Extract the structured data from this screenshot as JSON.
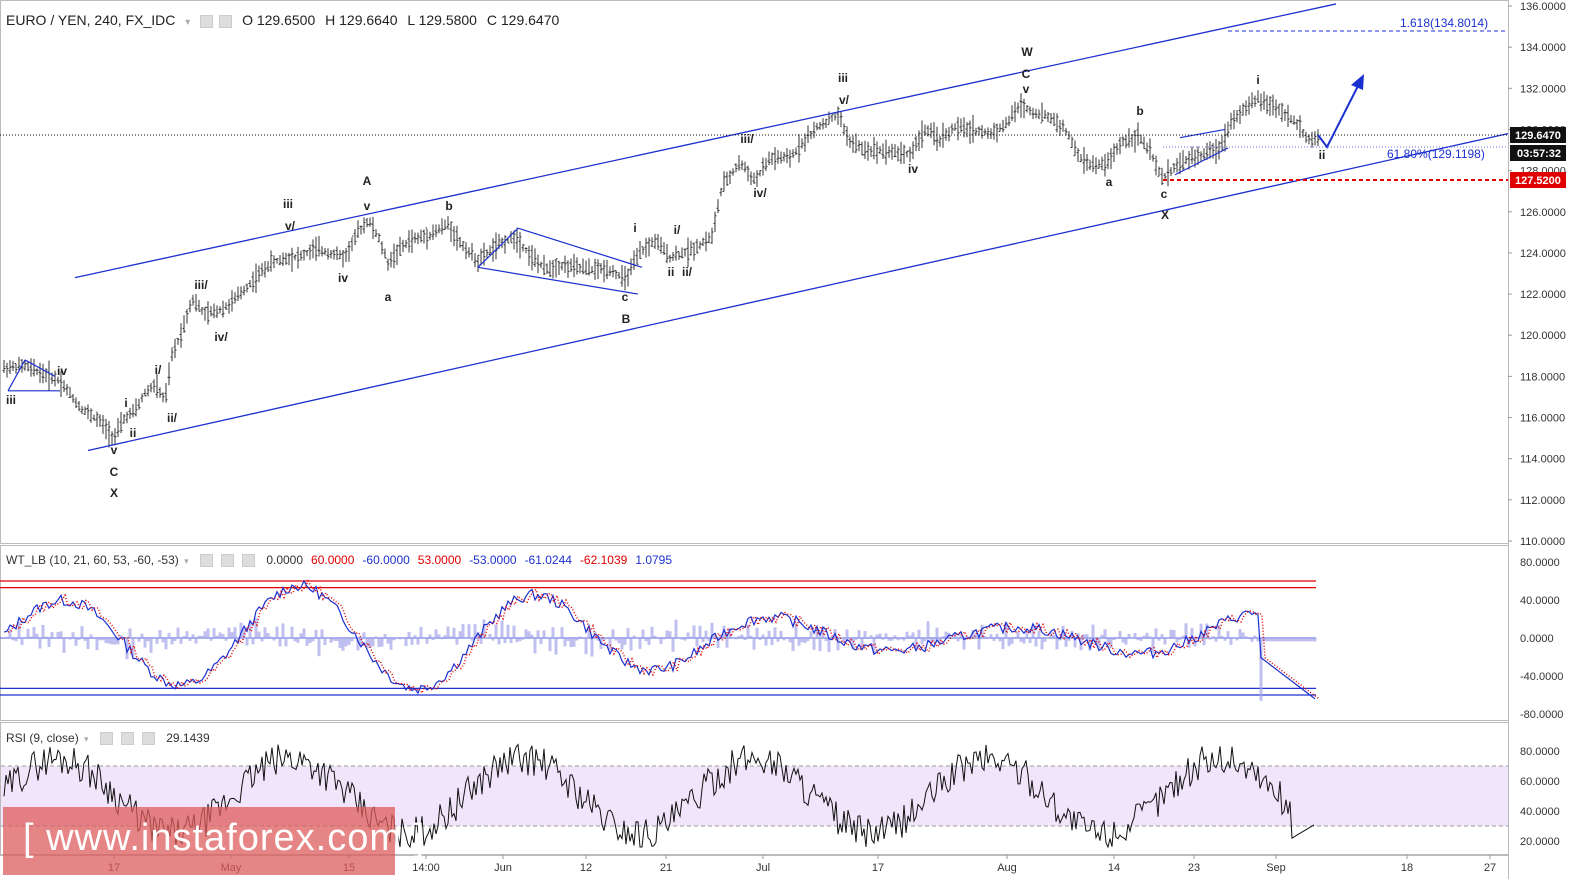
{
  "header": {
    "symbol": "EURO / YEN, 240, FX_IDC",
    "open": "O 129.6500",
    "high": "H 129.6640",
    "low": "L 129.5800",
    "close": "C 129.6470"
  },
  "indicator_wt": {
    "label": "WT_LB (10, 21, 60, 53, -60, -53)",
    "values": [
      "0.0000",
      "60.0000",
      "-60.0000",
      "53.0000",
      "-53.0000",
      "-61.0244",
      "-62.1039",
      "1.0795"
    ],
    "colors": [
      "#333333",
      "#e00000",
      "#1c30d0",
      "#e00000",
      "#1c30d0",
      "#1c30d0",
      "#e00000",
      "#1c30d0"
    ]
  },
  "indicator_rsi": {
    "label": "RSI (9, close)",
    "value": "29.1439"
  },
  "price_labels": {
    "current": "129.6470",
    "timer": "03:57:32",
    "support": "127.5200"
  },
  "fib_labels": {
    "ext": "1.618(134.8014)",
    "retr": "61.80%(129.1198)"
  },
  "watermark": "[ www.instaforex.com ]",
  "colors": {
    "price_bars": "#333333",
    "channel": "#1c30d0",
    "support_line": "#e00000",
    "fib": "#1c30d0",
    "wt_fast": "#1c30d0",
    "wt_slow": "#e00000",
    "wt_hist": "#a4a4ea",
    "rsi_band": "#f1e5fb",
    "rsi_line": "#111111",
    "axis_current_bg": "#111111",
    "axis_support_bg": "#e00000"
  },
  "chart_data": [
    {
      "type": "ohlc",
      "title": "EURO / YEN, 240, FX_IDC",
      "ylim": [
        110,
        136
      ],
      "y_ticks": [
        "110.0000",
        "112.0000",
        "114.0000",
        "116.0000",
        "118.0000",
        "120.0000",
        "122.0000",
        "124.0000",
        "126.0000",
        "128.0000",
        "130.0000",
        "132.0000",
        "134.0000",
        "136.0000"
      ],
      "x_ticks": [
        "17",
        "May",
        "15",
        "14:00",
        "Jun",
        "12",
        "21",
        "Jul",
        "17",
        "Aug",
        "14",
        "23",
        "Sep",
        "18",
        "27"
      ],
      "price_path": [
        [
          0,
          118.4
        ],
        [
          25,
          118.5
        ],
        [
          40,
          118.2
        ],
        [
          60,
          117.8
        ],
        [
          80,
          116.5
        ],
        [
          100,
          115.8
        ],
        [
          114,
          115.0
        ],
        [
          125,
          116.0
        ],
        [
          135,
          116.3
        ],
        [
          145,
          117.2
        ],
        [
          155,
          117.6
        ],
        [
          165,
          116.8
        ],
        [
          172,
          119.0
        ],
        [
          182,
          120.2
        ],
        [
          192,
          121.8
        ],
        [
          205,
          121.0
        ],
        [
          218,
          121.2
        ],
        [
          230,
          121.5
        ],
        [
          250,
          122.5
        ],
        [
          270,
          123.5
        ],
        [
          290,
          123.8
        ],
        [
          300,
          123.8
        ],
        [
          315,
          124.2
        ],
        [
          330,
          124.0
        ],
        [
          345,
          123.8
        ],
        [
          358,
          125.0
        ],
        [
          368,
          125.6
        ],
        [
          378,
          124.8
        ],
        [
          388,
          123.5
        ],
        [
          398,
          124.1
        ],
        [
          410,
          124.6
        ],
        [
          430,
          124.9
        ],
        [
          448,
          125.4
        ],
        [
          460,
          124.5
        ],
        [
          478,
          123.6
        ],
        [
          495,
          124.3
        ],
        [
          515,
          124.8
        ],
        [
          530,
          123.9
        ],
        [
          545,
          123.2
        ],
        [
          560,
          123.4
        ],
        [
          575,
          123.3
        ],
        [
          590,
          123.2
        ],
        [
          610,
          123.2
        ],
        [
          625,
          122.7
        ],
        [
          640,
          124.0
        ],
        [
          655,
          124.6
        ],
        [
          670,
          123.8
        ],
        [
          690,
          124.1
        ],
        [
          712,
          124.8
        ],
        [
          722,
          127.2
        ],
        [
          740,
          128.4
        ],
        [
          755,
          127.5
        ],
        [
          770,
          128.6
        ],
        [
          790,
          128.6
        ],
        [
          805,
          129.5
        ],
        [
          820,
          130.2
        ],
        [
          838,
          130.7
        ],
        [
          850,
          129.4
        ],
        [
          865,
          129.0
        ],
        [
          880,
          129.0
        ],
        [
          895,
          128.9
        ],
        [
          910,
          128.8
        ],
        [
          925,
          130.0
        ],
        [
          940,
          129.5
        ],
        [
          955,
          130.1
        ],
        [
          970,
          130.0
        ],
        [
          990,
          129.8
        ],
        [
          1005,
          130.2
        ],
        [
          1020,
          131.2
        ],
        [
          1035,
          130.8
        ],
        [
          1050,
          130.6
        ],
        [
          1065,
          130.0
        ],
        [
          1080,
          128.6
        ],
        [
          1095,
          128.2
        ],
        [
          1108,
          128.4
        ],
        [
          1122,
          129.4
        ],
        [
          1138,
          129.7
        ],
        [
          1150,
          128.9
        ],
        [
          1162,
          127.6
        ],
        [
          1175,
          128.2
        ],
        [
          1190,
          128.6
        ],
        [
          1205,
          128.8
        ],
        [
          1220,
          129.1
        ],
        [
          1232,
          130.5
        ],
        [
          1245,
          131.0
        ],
        [
          1258,
          131.5
        ],
        [
          1270,
          131.2
        ],
        [
          1285,
          130.8
        ],
        [
          1298,
          130.2
        ],
        [
          1310,
          129.4
        ],
        [
          1318,
          129.6
        ]
      ],
      "annotations": {
        "channel_upper": [
          [
            75,
            122.8
          ],
          [
            1336,
            136.1
          ]
        ],
        "channel_lower": [
          [
            88,
            114.4
          ],
          [
            1508,
            129.8
          ]
        ],
        "wave_labels": [
          "iii",
          "iv",
          "v",
          "C",
          "X",
          "i",
          "ii",
          "i/",
          "ii/",
          "iii/",
          "iv/",
          "iii",
          "v/",
          "iv",
          "A",
          "v",
          "a",
          "b",
          "i",
          "i/",
          "c",
          "B",
          "ii",
          "ii/",
          "iii",
          "v/",
          "iii/",
          "iv/",
          "iv",
          "W",
          "C",
          "v",
          "a",
          "b",
          "c",
          "X",
          "i",
          "ii"
        ]
      }
    },
    {
      "type": "line",
      "title": "WT_LB (10, 21, 60, 53, -60, -53)",
      "ylim": [
        -80,
        90
      ],
      "y_ticks": [
        "80.0000",
        "40.0000",
        "0.0000",
        "-40.0000",
        "-80.0000"
      ],
      "levels": [
        60,
        53,
        -53,
        -60,
        0
      ]
    },
    {
      "type": "line",
      "title": "RSI (9, close)",
      "ylim": [
        15,
        95
      ],
      "y_ticks": [
        "80.0000",
        "60.0000",
        "40.0000",
        "20.0000"
      ],
      "band": [
        30,
        70
      ],
      "last_value": 29.1439
    }
  ]
}
